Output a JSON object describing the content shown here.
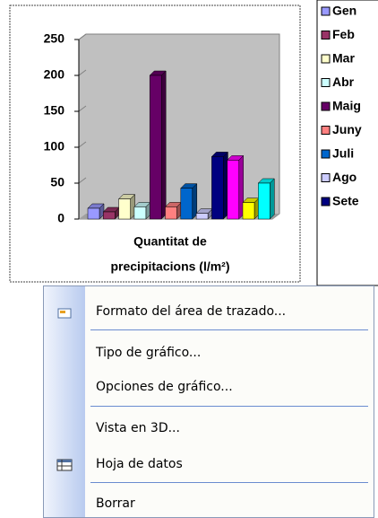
{
  "chart_data": {
    "type": "bar",
    "categories": [
      "Quantitat de precipitacions (l/m²)"
    ],
    "series": [
      {
        "name": "Gen",
        "color": "#9999ff",
        "values": [
          15
        ]
      },
      {
        "name": "Feb",
        "color": "#993366",
        "values": [
          10
        ]
      },
      {
        "name": "Mar",
        "color": "#ffffcc",
        "values": [
          28
        ]
      },
      {
        "name": "Abr",
        "color": "#ccffff",
        "values": [
          17
        ]
      },
      {
        "name": "Maig",
        "color": "#660066",
        "values": [
          200
        ]
      },
      {
        "name": "Juny",
        "color": "#ff8080",
        "values": [
          17
        ]
      },
      {
        "name": "Juli",
        "color": "#0066cc",
        "values": [
          43
        ]
      },
      {
        "name": "Ago",
        "color": "#ccccff",
        "values": [
          8
        ]
      },
      {
        "name": "Sete",
        "color": "#000080",
        "values": [
          87
        ]
      },
      {
        "name": null,
        "color": "#ff00ff",
        "values": [
          82
        ]
      },
      {
        "name": null,
        "color": "#ffff00",
        "values": [
          23
        ]
      },
      {
        "name": null,
        "color": "#00ffff",
        "values": [
          50
        ]
      }
    ],
    "ylim": [
      0,
      250
    ],
    "yticks": [
      0,
      50,
      100,
      150,
      200,
      250
    ]
  },
  "menu": {
    "items": [
      "Formato del área de trazado...",
      "Tipo de gráfico...",
      "Opciones de gráfico...",
      "Vista en 3D...",
      "Hoja de datos",
      "Borrar"
    ]
  }
}
